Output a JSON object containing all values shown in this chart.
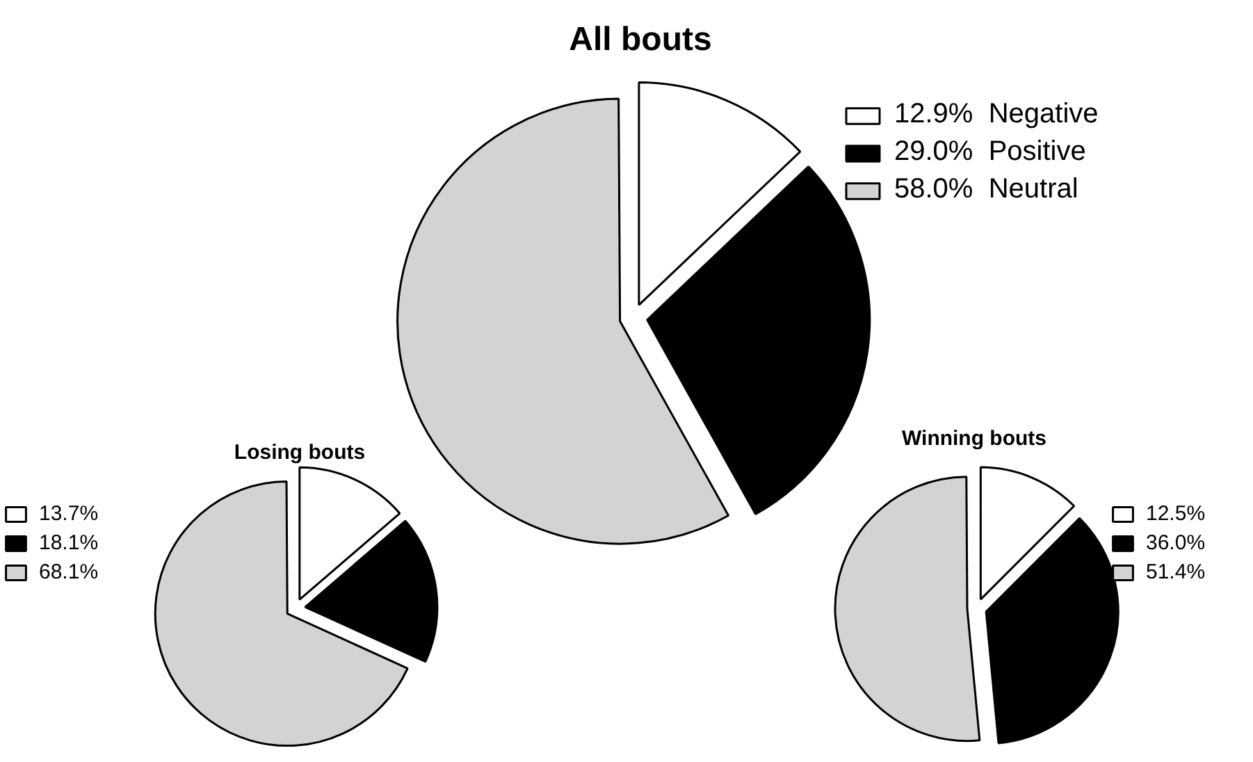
{
  "chart_data": [
    {
      "type": "pie",
      "title": "All bouts",
      "categories": [
        "Negative",
        "Positive",
        "Neutral"
      ],
      "values": [
        12.9,
        29.0,
        58.0
      ],
      "value_labels": [
        "12.9%",
        "29.0%",
        "58.0%"
      ],
      "colors": [
        "#ffffff",
        "#000000",
        "#d3d3d3"
      ],
      "legend": "top right"
    },
    {
      "type": "pie",
      "title": "Losing bouts",
      "categories": [
        "13.7%",
        "18.1%",
        "68.1%"
      ],
      "values": [
        13.7,
        18.1,
        68.1
      ],
      "colors": [
        "#ffffff",
        "#000000",
        "#d3d3d3"
      ],
      "legend": "left"
    },
    {
      "type": "pie",
      "title": "Winning bouts",
      "categories": [
        "12.5%",
        "36.0%",
        "51.4%"
      ],
      "values": [
        12.5,
        36.0,
        51.4
      ],
      "colors": [
        "#ffffff",
        "#000000",
        "#d3d3d3"
      ],
      "legend": "right"
    }
  ]
}
